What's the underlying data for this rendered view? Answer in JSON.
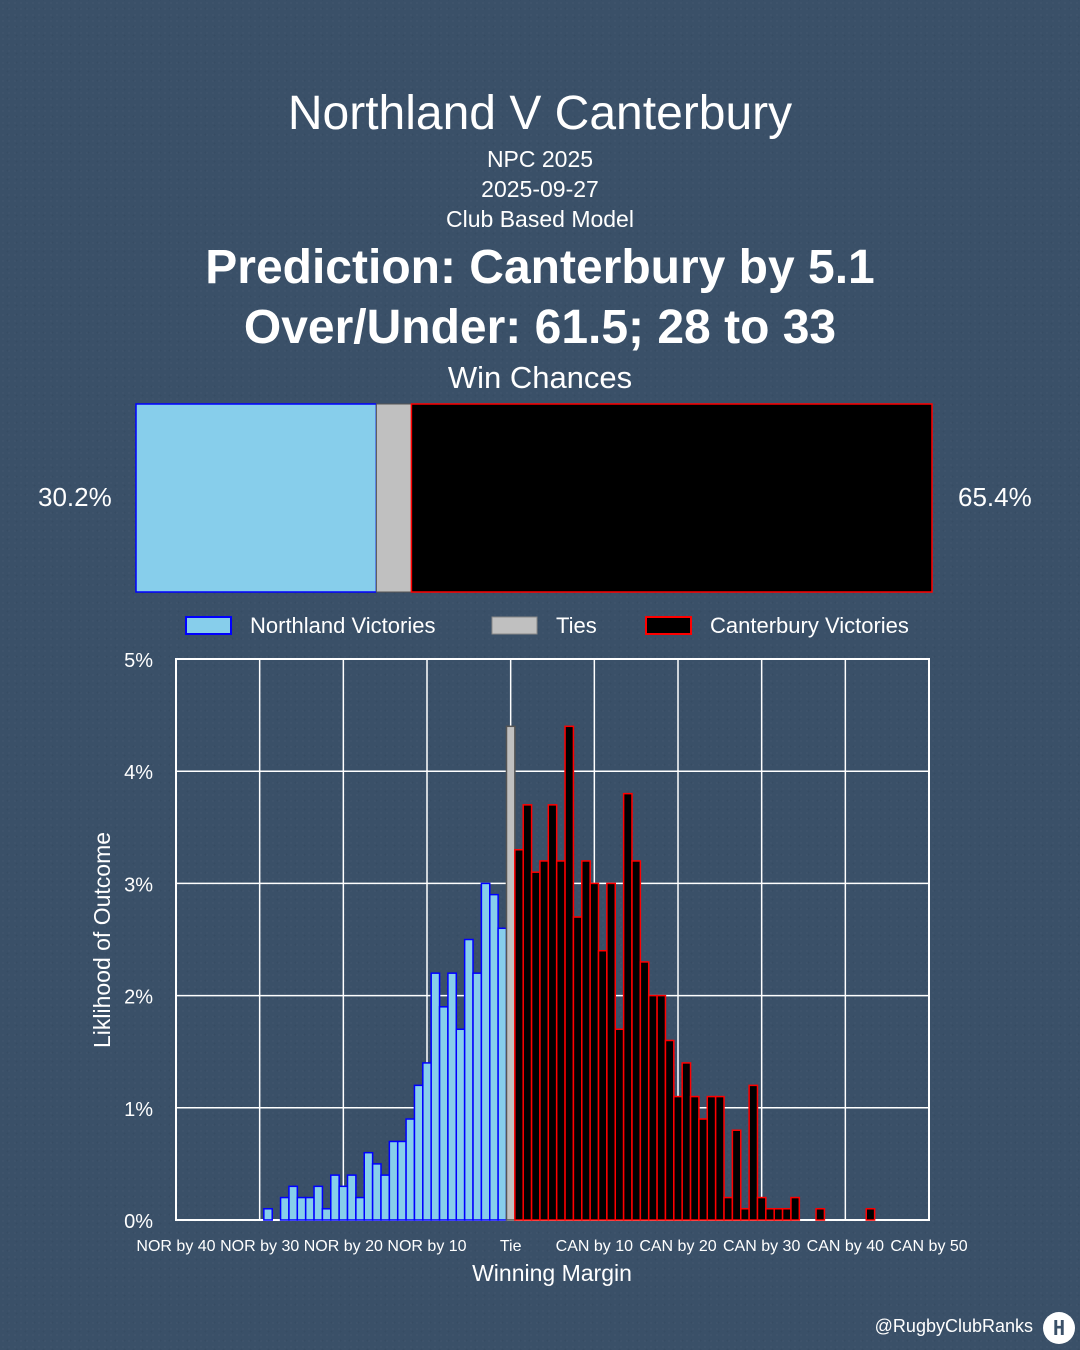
{
  "header": {
    "title": "Northland V Canterbury",
    "competition": "NPC 2025",
    "date": "2025-09-27",
    "model": "Club Based Model",
    "prediction": "Prediction: Canterbury by 5.1",
    "over_under": "Over/Under: 61.5; 28 to 33"
  },
  "win_chances": {
    "title": "Win Chances",
    "northland_pct_label": "30.2%",
    "canterbury_pct_label": "65.4%",
    "northland": 30.2,
    "tie": 4.4,
    "canterbury": 65.4,
    "colors": {
      "northland": "#87ceeb",
      "tie": "#c0c0c0",
      "canterbury": "#000000",
      "northland_edge": "#0000ff",
      "canterbury_edge": "#ff0000"
    }
  },
  "legend": {
    "northland": "Northland Victories",
    "ties": "Ties",
    "canterbury": "Canterbury Victories"
  },
  "chart_data": {
    "type": "bar",
    "xlabel": "Winning Margin",
    "ylabel": "Liklihood of Outcome",
    "ylim": [
      0,
      5
    ],
    "xlim": [
      -40,
      50
    ],
    "y_ticks": [
      "0%",
      "1%",
      "2%",
      "3%",
      "4%",
      "5%"
    ],
    "x_ticks": [
      {
        "value": -40,
        "label": "NOR by 40"
      },
      {
        "value": -30,
        "label": "NOR by 30"
      },
      {
        "value": -20,
        "label": "NOR by 20"
      },
      {
        "value": -10,
        "label": "NOR by 10"
      },
      {
        "value": 0,
        "label": "Tie"
      },
      {
        "value": 10,
        "label": "CAN by 10"
      },
      {
        "value": 20,
        "label": "CAN by 20"
      },
      {
        "value": 30,
        "label": "CAN by 30"
      },
      {
        "value": 40,
        "label": "CAN by 40"
      },
      {
        "value": 50,
        "label": "CAN by 50"
      }
    ],
    "grid": true,
    "series": [
      {
        "name": "Northland Victories",
        "x": [
          -29,
          -27,
          -26,
          -25,
          -24,
          -23,
          -22,
          -21,
          -20,
          -19,
          -18,
          -17,
          -16,
          -15,
          -14,
          -13,
          -12,
          -11,
          -10,
          -9,
          -8,
          -7,
          -6,
          -5,
          -4,
          -3,
          -2,
          -1
        ],
        "values": [
          0.1,
          0.2,
          0.3,
          0.2,
          0.2,
          0.3,
          0.1,
          0.4,
          0.3,
          0.4,
          0.2,
          0.6,
          0.5,
          0.4,
          0.7,
          0.7,
          0.9,
          1.2,
          1.4,
          2.2,
          1.9,
          2.2,
          1.7,
          2.5,
          2.2,
          3.0,
          2.9,
          2.6
        ]
      },
      {
        "name": "Ties",
        "x": [
          0
        ],
        "values": [
          4.4
        ]
      },
      {
        "name": "Canterbury Victories",
        "x": [
          1,
          2,
          3,
          4,
          5,
          6,
          7,
          8,
          9,
          10,
          11,
          12,
          13,
          14,
          15,
          16,
          17,
          18,
          19,
          20,
          21,
          22,
          23,
          24,
          25,
          26,
          27,
          28,
          29,
          30,
          31,
          32,
          33,
          34,
          35,
          36,
          37,
          39,
          40,
          43
        ],
        "values": [
          3.3,
          3.7,
          3.1,
          3.2,
          3.7,
          3.2,
          4.4,
          2.7,
          3.2,
          3.0,
          2.4,
          3.0,
          1.7,
          3.8,
          3.2,
          2.3,
          2.0,
          2.0,
          1.6,
          1.1,
          1.4,
          1.1,
          0.9,
          1.1,
          1.1,
          0.2,
          0.8,
          0.1,
          1.2,
          0.2,
          0.1,
          0.1,
          0.1,
          0.2,
          0.0,
          0.0,
          0.1,
          0.0,
          0.0,
          0.1
        ]
      }
    ]
  },
  "footer": {
    "credit": "@RugbyClubRanks",
    "logo_glyph": "H"
  }
}
